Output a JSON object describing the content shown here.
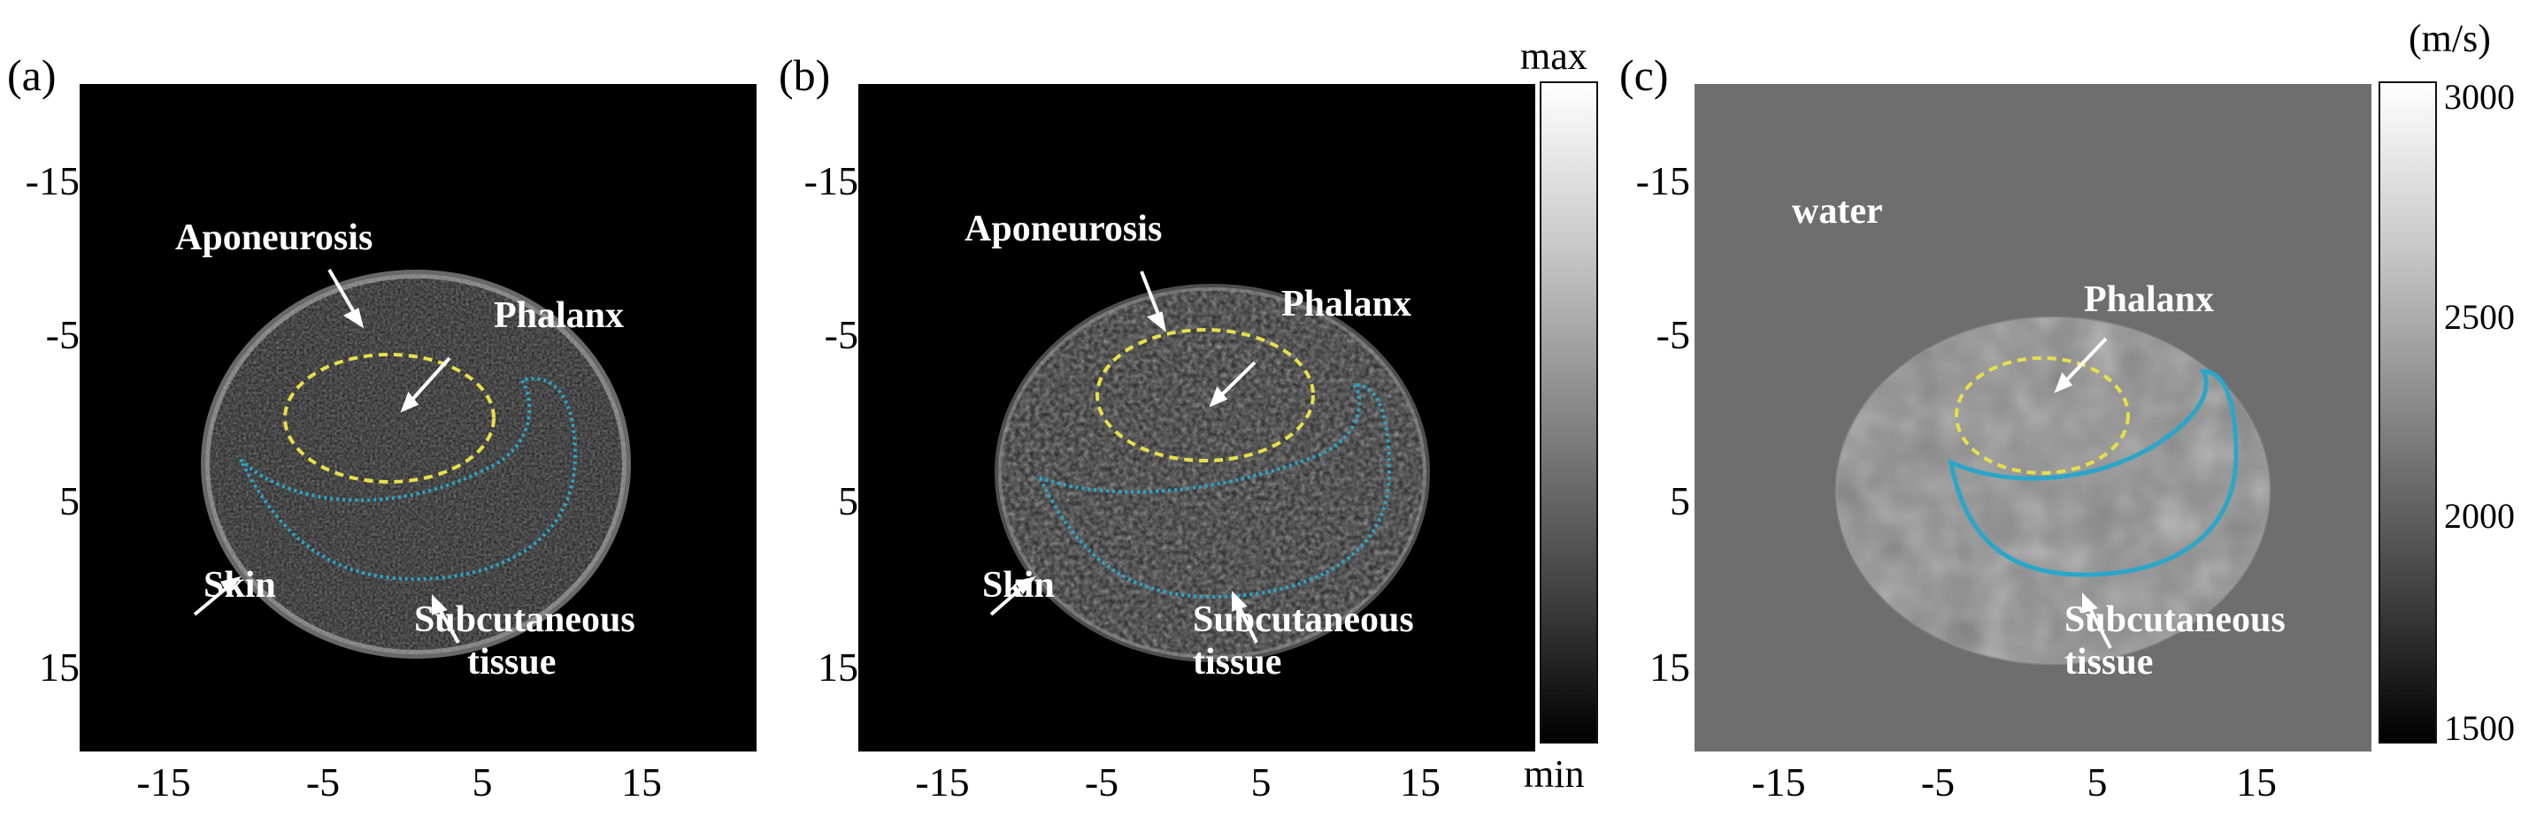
{
  "panels": [
    {
      "label": "(a)",
      "y_ticks": [
        "-15",
        "-5",
        "5",
        "15"
      ],
      "x_ticks": [
        "-15",
        "-5",
        "5",
        "15"
      ],
      "annotations": [
        {
          "key": "aponeurosis",
          "lines": [
            "Aponeurosis"
          ]
        },
        {
          "key": "phalanx",
          "lines": [
            "Phalanx"
          ]
        },
        {
          "key": "skin",
          "lines": [
            "Skin"
          ]
        },
        {
          "key": "subcutaneous",
          "lines": [
            "Subcutaneous",
            "tissue"
          ]
        }
      ]
    },
    {
      "label": "(b)",
      "y_ticks": [
        "-15",
        "-5",
        "5",
        "15"
      ],
      "x_ticks": [
        "-15",
        "-5",
        "5",
        "15"
      ],
      "annotations": [
        {
          "key": "aponeurosis",
          "lines": [
            "Aponeurosis"
          ]
        },
        {
          "key": "phalanx",
          "lines": [
            "Phalanx"
          ]
        },
        {
          "key": "skin",
          "lines": [
            "Skin"
          ]
        },
        {
          "key": "subcutaneous",
          "lines": [
            "Subcutaneous",
            "tissue"
          ]
        }
      ],
      "colorbar": {
        "top_label": "max",
        "bottom_label": "min"
      }
    },
    {
      "label": "(c)",
      "y_ticks": [
        "-15",
        "-5",
        "5",
        "15"
      ],
      "x_ticks": [
        "-15",
        "-5",
        "5",
        "15"
      ],
      "annotations": [
        {
          "key": "water",
          "lines": [
            "water"
          ]
        },
        {
          "key": "phalanx",
          "lines": [
            "Phalanx"
          ]
        },
        {
          "key": "subcutaneous",
          "lines": [
            "Subcutaneous",
            "tissue"
          ]
        }
      ],
      "colorbar": {
        "unit": "(m/s)",
        "ticks": [
          "3000",
          "2500",
          "2000",
          "1500"
        ]
      }
    }
  ],
  "colors": {
    "image_background_a": "#000000",
    "image_background_b": "#000000",
    "image_background_c": "#6e6e6e",
    "phalanx_outline": "#e8e04a",
    "tissue_outline": "#2aa6c9",
    "annotation_text": "#ffffff"
  }
}
